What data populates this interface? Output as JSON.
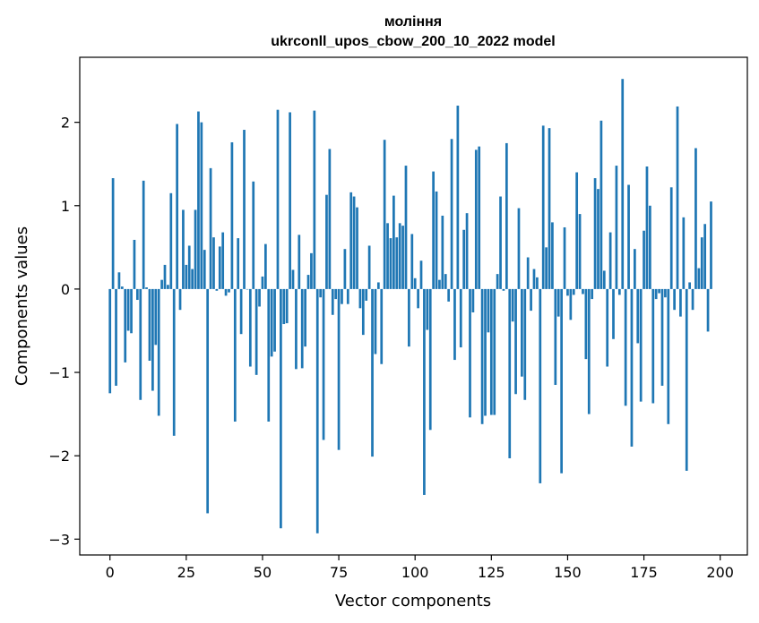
{
  "chart_data": {
    "type": "bar",
    "title_line1": "моління",
    "title_line2": "ukrconll_upos_cbow_200_10_2022 model",
    "xlabel": "Vector components",
    "ylabel": "Components values",
    "xlim": [
      -9.9,
      208.9
    ],
    "ylim": [
      -3.19,
      2.78
    ],
    "xticks": [
      0,
      25,
      50,
      75,
      100,
      125,
      150,
      175,
      200
    ],
    "xtick_labels": [
      "0",
      "25",
      "50",
      "75",
      "100",
      "125",
      "150",
      "175",
      "200"
    ],
    "yticks": [
      -3,
      -2,
      -1,
      0,
      1,
      2
    ],
    "ytick_labels": [
      "−3",
      "−2",
      "−1",
      "0",
      "1",
      "2"
    ],
    "bar_color": "#1f77b4",
    "values": [
      -1.25,
      1.33,
      -1.16,
      0.2,
      0.03,
      -0.88,
      -0.5,
      -0.53,
      0.59,
      -0.13,
      -1.33,
      1.3,
      0.02,
      -0.86,
      -1.22,
      -0.67,
      -1.52,
      0.11,
      0.29,
      0.05,
      1.15,
      -1.76,
      1.98,
      -0.25,
      0.95,
      0.29,
      0.52,
      0.24,
      0.95,
      2.13,
      2.0,
      0.47,
      -2.69,
      1.45,
      0.62,
      -0.02,
      0.51,
      0.68,
      -0.08,
      -0.04,
      1.76,
      -1.59,
      0.61,
      -0.54,
      1.91,
      0.0,
      -0.93,
      1.29,
      -1.03,
      -0.21,
      0.15,
      0.54,
      -1.59,
      -0.81,
      -0.75,
      2.15,
      -2.87,
      -0.42,
      -0.41,
      2.12,
      0.23,
      -0.96,
      0.65,
      -0.95,
      -0.69,
      0.17,
      0.43,
      2.14,
      -2.93,
      -0.1,
      -1.81,
      1.13,
      1.68,
      -0.31,
      -0.12,
      -1.93,
      -0.18,
      0.48,
      -0.18,
      1.16,
      1.11,
      0.98,
      -0.23,
      -0.55,
      -0.14,
      0.52,
      -2.01,
      -0.78,
      0.08,
      -0.9,
      1.79,
      0.79,
      0.61,
      1.12,
      0.62,
      0.79,
      0.76,
      1.48,
      -0.69,
      0.66,
      0.13,
      -0.23,
      0.34,
      -2.47,
      -0.49,
      -1.69,
      1.41,
      1.17,
      0.11,
      0.88,
      0.18,
      -0.15,
      1.8,
      -0.85,
      2.2,
      -0.7,
      0.71,
      0.91,
      -1.54,
      -0.28,
      1.67,
      1.71,
      -1.62,
      -1.52,
      -0.52,
      -1.51,
      -1.51,
      0.18,
      1.11,
      -0.02,
      1.75,
      -2.03,
      -0.39,
      -1.26,
      0.97,
      -1.05,
      -1.33,
      0.38,
      -0.26,
      0.24,
      0.14,
      -2.33,
      1.96,
      0.5,
      1.93,
      0.8,
      -1.15,
      -0.33,
      -2.21,
      0.74,
      -0.08,
      -0.37,
      -0.07,
      1.4,
      0.9,
      -0.06,
      -0.84,
      -1.5,
      -0.12,
      1.33,
      1.2,
      2.02,
      0.22,
      -0.93,
      0.68,
      -0.6,
      1.48,
      -0.07,
      2.52,
      -1.4,
      1.25,
      -1.89,
      0.48,
      -0.65,
      -1.35,
      0.7,
      1.47,
      1.0,
      -1.37,
      -0.12,
      -0.05,
      -1.16,
      -0.1,
      -1.62,
      1.22,
      -0.25,
      2.19,
      -0.33,
      0.86,
      -2.18,
      0.08,
      -0.25,
      1.69,
      0.25,
      0.62,
      0.78,
      -0.51,
      1.05
    ]
  }
}
